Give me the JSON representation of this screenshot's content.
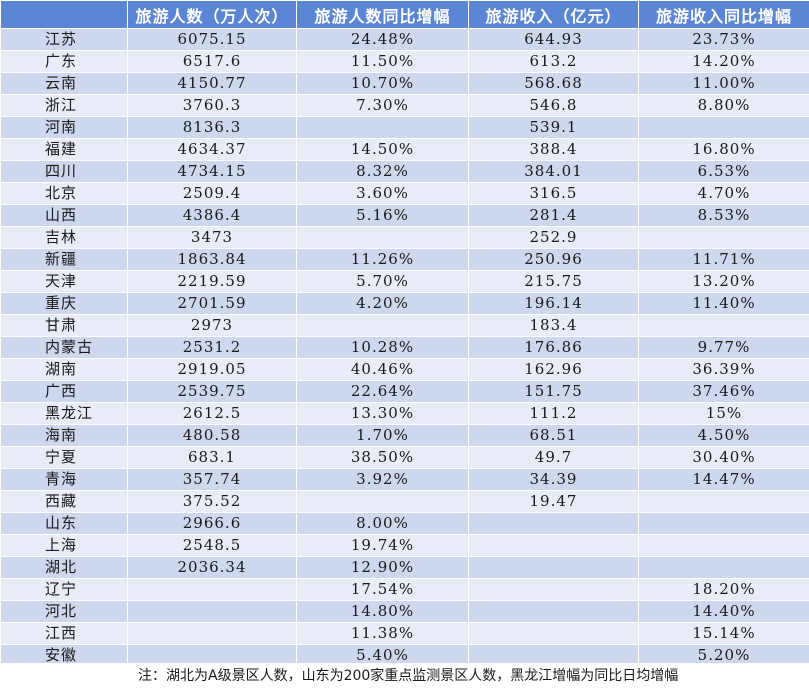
{
  "table": {
    "headers": [
      "",
      "旅游人数（万人次）",
      "旅游人数同比增幅",
      "旅游收入（亿元）",
      "旅游收入同比增幅"
    ],
    "rows": [
      [
        "江苏",
        "6075.15",
        "24.48%",
        "644.93",
        "23.73%"
      ],
      [
        "广东",
        "6517.6",
        "11.50%",
        "613.2",
        "14.20%"
      ],
      [
        "云南",
        "4150.77",
        "10.70%",
        "568.68",
        "11.00%"
      ],
      [
        "浙江",
        "3760.3",
        "7.30%",
        "546.8",
        "8.80%"
      ],
      [
        "河南",
        "8136.3",
        "",
        "539.1",
        ""
      ],
      [
        "福建",
        "4634.37",
        "14.50%",
        "388.4",
        "16.80%"
      ],
      [
        "四川",
        "4734.15",
        "8.32%",
        "384.01",
        "6.53%"
      ],
      [
        "北京",
        "2509.4",
        "3.60%",
        "316.5",
        "4.70%"
      ],
      [
        "山西",
        "4386.4",
        "5.16%",
        "281.4",
        "8.53%"
      ],
      [
        "吉林",
        "3473",
        "",
        "252.9",
        ""
      ],
      [
        "新疆",
        "1863.84",
        "11.26%",
        "250.96",
        "11.71%"
      ],
      [
        "天津",
        "2219.59",
        "5.70%",
        "215.75",
        "13.20%"
      ],
      [
        "重庆",
        "2701.59",
        "4.20%",
        "196.14",
        "11.40%"
      ],
      [
        "甘肃",
        "2973",
        "",
        "183.4",
        ""
      ],
      [
        "内蒙古",
        "2531.2",
        "10.28%",
        "176.86",
        "9.77%"
      ],
      [
        "湖南",
        "2919.05",
        "40.46%",
        "162.96",
        "36.39%"
      ],
      [
        "广西",
        "2539.75",
        "22.64%",
        "151.75",
        "37.46%"
      ],
      [
        "黑龙江",
        "2612.5",
        "13.30%",
        "111.2",
        "15%"
      ],
      [
        "海南",
        "480.58",
        "1.70%",
        "68.51",
        "4.50%"
      ],
      [
        "宁夏",
        "683.1",
        "38.50%",
        "49.7",
        "30.40%"
      ],
      [
        "青海",
        "357.74",
        "3.92%",
        "34.39",
        "14.47%"
      ],
      [
        "西藏",
        "375.52",
        "",
        "19.47",
        ""
      ],
      [
        "山东",
        "2966.6",
        "8.00%",
        "",
        ""
      ],
      [
        "上海",
        "2548.5",
        "19.74%",
        "",
        ""
      ],
      [
        "湖北",
        "2036.34",
        "12.90%",
        "",
        ""
      ],
      [
        "辽宁",
        "",
        "17.54%",
        "",
        "18.20%"
      ],
      [
        "河北",
        "",
        "14.80%",
        "",
        "14.40%"
      ],
      [
        "江西",
        "",
        "11.38%",
        "",
        "15.14%"
      ],
      [
        "安徽",
        "",
        "5.40%",
        "",
        "5.20%"
      ]
    ]
  },
  "note": "注：湖北为A级景区人数，山东为200家重点监测景区人数，黑龙江增幅为同比日均增幅",
  "colors": {
    "header_bg": "#5b86d6",
    "row_odd": "#cdd7ee",
    "row_even": "#e8ecf7"
  }
}
